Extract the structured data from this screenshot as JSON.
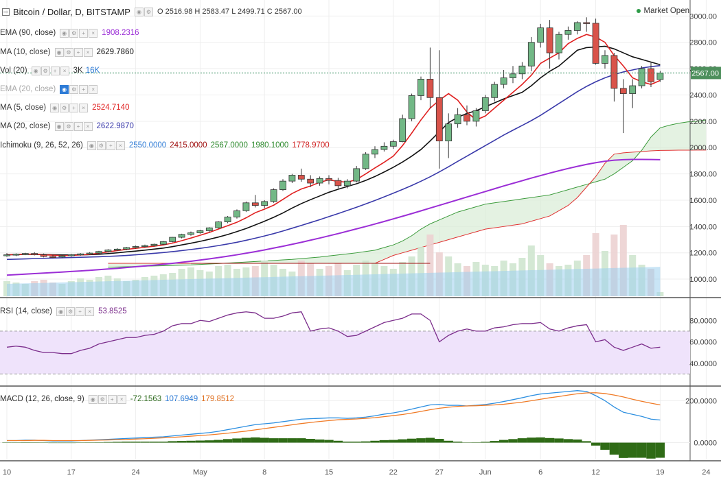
{
  "legend": {
    "main": {
      "title": "Bitcoin / Dollar, D, BITSTAMP",
      "ohlc": "O 2516.98  H 2583.47  L 2499.71  C 2567.00"
    },
    "ema90": {
      "name": "EMA (90, close)",
      "value": "1908.2316",
      "color": "#9b2ed6"
    },
    "ma10": {
      "name": "MA (10, close)",
      "value": "2629.7860",
      "color": "#111111"
    },
    "vol": {
      "name": "Vol (20)",
      "v1": "3K",
      "v2": "16K",
      "color1": "#333333",
      "color2": "#2d7bd6"
    },
    "ema20": {
      "name": "EMA (20, close)"
    },
    "ma5": {
      "name": "MA (5, close)",
      "value": "2524.7140",
      "color": "#e02020"
    },
    "ma20": {
      "name": "MA (20, close)",
      "value": "2622.9870",
      "color": "#3a3aaa"
    },
    "ichimoku": {
      "name": "Ichimoku (9, 26, 52, 26)",
      "values": [
        "2550.0000",
        "2415.0000",
        "2567.0000",
        "1980.1000",
        "1778.9700"
      ],
      "colors": [
        "#2d7bd6",
        "#a01010",
        "#2e8b2e",
        "#2e8b2e",
        "#d02020"
      ]
    },
    "rsi": {
      "name": "RSI (14, close)",
      "value": "53.8525",
      "color": "#7b2d8b"
    },
    "macd": {
      "name": "MACD (12, 26, close, 9)",
      "values": [
        "-72.1563",
        "107.6949",
        "179.8512"
      ],
      "colors": [
        "#2e6b1e",
        "#2d7bd6",
        "#e07020"
      ]
    }
  },
  "market_status": "Market Open",
  "price_tag": "2567.00",
  "chart_data": {
    "type": "candlestick",
    "title": "Bitcoin / Dollar, D, BITSTAMP",
    "y_ticks": [
      "3000.00",
      "2800.00",
      "2600.00",
      "2400.00",
      "2200.00",
      "2000.00",
      "1800.00",
      "1600.00",
      "1400.00",
      "1200.00",
      "1000.00"
    ],
    "ylim": [
      870,
      3080
    ],
    "x_ticks": [
      {
        "label": "10",
        "index": 0
      },
      {
        "label": "17",
        "index": 7
      },
      {
        "label": "24",
        "index": 14
      },
      {
        "label": "May",
        "index": 21
      },
      {
        "label": "8",
        "index": 28
      },
      {
        "label": "15",
        "index": 35
      },
      {
        "label": "22",
        "index": 42
      },
      {
        "label": "27",
        "index": 47
      },
      {
        "label": "Jun",
        "index": 52
      },
      {
        "label": "6",
        "index": 58
      },
      {
        "label": "12",
        "index": 64
      },
      {
        "label": "19",
        "index": 71
      },
      {
        "label": "24",
        "index": 76
      }
    ],
    "ohlc": [
      [
        1180,
        1198,
        1170,
        1185
      ],
      [
        1185,
        1196,
        1175,
        1190
      ],
      [
        1190,
        1200,
        1182,
        1195
      ],
      [
        1195,
        1205,
        1180,
        1185
      ],
      [
        1185,
        1195,
        1165,
        1172
      ],
      [
        1172,
        1185,
        1160,
        1168
      ],
      [
        1168,
        1182,
        1160,
        1178
      ],
      [
        1178,
        1192,
        1170,
        1186
      ],
      [
        1186,
        1198,
        1178,
        1192
      ],
      [
        1192,
        1205,
        1185,
        1198
      ],
      [
        1198,
        1215,
        1190,
        1210
      ],
      [
        1210,
        1228,
        1202,
        1222
      ],
      [
        1222,
        1235,
        1215,
        1228
      ],
      [
        1228,
        1245,
        1220,
        1240
      ],
      [
        1240,
        1255,
        1232,
        1248
      ],
      [
        1248,
        1262,
        1240,
        1255
      ],
      [
        1255,
        1270,
        1248,
        1265
      ],
      [
        1265,
        1290,
        1260,
        1285
      ],
      [
        1285,
        1320,
        1280,
        1318
      ],
      [
        1318,
        1345,
        1310,
        1340
      ],
      [
        1340,
        1362,
        1330,
        1352
      ],
      [
        1352,
        1375,
        1345,
        1368
      ],
      [
        1368,
        1395,
        1355,
        1390
      ],
      [
        1390,
        1440,
        1385,
        1435
      ],
      [
        1435,
        1480,
        1425,
        1472
      ],
      [
        1472,
        1530,
        1460,
        1520
      ],
      [
        1520,
        1590,
        1510,
        1580
      ],
      [
        1580,
        1640,
        1545,
        1560
      ],
      [
        1560,
        1600,
        1540,
        1590
      ],
      [
        1590,
        1690,
        1580,
        1680
      ],
      [
        1680,
        1760,
        1670,
        1745
      ],
      [
        1745,
        1800,
        1730,
        1790
      ],
      [
        1790,
        1840,
        1740,
        1760
      ],
      [
        1760,
        1790,
        1700,
        1730
      ],
      [
        1730,
        1780,
        1710,
        1765
      ],
      [
        1765,
        1790,
        1720,
        1750
      ],
      [
        1750,
        1770,
        1690,
        1710
      ],
      [
        1710,
        1760,
        1690,
        1745
      ],
      [
        1745,
        1860,
        1735,
        1840
      ],
      [
        1840,
        1965,
        1830,
        1950
      ],
      [
        1950,
        2010,
        1920,
        1985
      ],
      [
        1985,
        2040,
        1970,
        2010
      ],
      [
        2010,
        2060,
        1990,
        2045
      ],
      [
        2045,
        2250,
        2040,
        2220
      ],
      [
        2220,
        2410,
        2200,
        2395
      ],
      [
        2395,
        2540,
        2360,
        2520
      ],
      [
        2520,
        2760,
        2300,
        2380
      ],
      [
        2380,
        2740,
        1840,
        2050
      ],
      [
        2050,
        2260,
        1920,
        2180
      ],
      [
        2180,
        2300,
        2150,
        2250
      ],
      [
        2250,
        2320,
        2170,
        2200
      ],
      [
        2200,
        2300,
        2160,
        2280
      ],
      [
        2280,
        2400,
        2260,
        2380
      ],
      [
        2380,
        2500,
        2350,
        2480
      ],
      [
        2480,
        2590,
        2450,
        2530
      ],
      [
        2530,
        2620,
        2490,
        2560
      ],
      [
        2560,
        2650,
        2520,
        2620
      ],
      [
        2620,
        2840,
        2580,
        2800
      ],
      [
        2800,
        2940,
        2760,
        2910
      ],
      [
        2910,
        2970,
        2600,
        2720
      ],
      [
        2720,
        2880,
        2670,
        2860
      ],
      [
        2860,
        2920,
        2820,
        2890
      ],
      [
        2890,
        2960,
        2860,
        2950
      ],
      [
        2950,
        2990,
        2880,
        2945
      ],
      [
        2945,
        2980,
        2630,
        2640
      ],
      [
        2640,
        2740,
        2600,
        2700
      ],
      [
        2700,
        2720,
        2350,
        2450
      ],
      [
        2450,
        2520,
        2110,
        2410
      ],
      [
        2410,
        2520,
        2300,
        2470
      ],
      [
        2470,
        2620,
        2450,
        2600
      ],
      [
        2600,
        2650,
        2460,
        2500
      ],
      [
        2517,
        2583,
        2500,
        2567
      ]
    ],
    "ma5": [
      1185,
      1187,
      1189,
      1190,
      1185,
      1182,
      1178,
      1180,
      1184,
      1188,
      1197,
      1207,
      1217,
      1226,
      1234,
      1242,
      1250,
      1260,
      1274,
      1292,
      1312,
      1333,
      1355,
      1381,
      1406,
      1432,
      1466,
      1505,
      1532,
      1562,
      1606,
      1651,
      1685,
      1708,
      1736,
      1755,
      1742,
      1737,
      1757,
      1800,
      1845,
      1888,
      1935,
      2015,
      2110,
      2210,
      2300,
      2360,
      2410,
      2360,
      2270,
      2210,
      2240,
      2300,
      2360,
      2420,
      2480,
      2550,
      2640,
      2680,
      2720,
      2790,
      2830,
      2860,
      2840,
      2800,
      2700,
      2620,
      2530,
      2500,
      2480,
      2510
    ],
    "ma10": [
      1185,
      1187,
      1188,
      1188,
      1187,
      1185,
      1184,
      1184,
      1185,
      1186,
      1189,
      1194,
      1200,
      1207,
      1213,
      1220,
      1228,
      1236,
      1247,
      1260,
      1273,
      1287,
      1303,
      1320,
      1339,
      1361,
      1385,
      1412,
      1440,
      1470,
      1503,
      1540,
      1574,
      1604,
      1632,
      1660,
      1683,
      1704,
      1725,
      1750,
      1780,
      1814,
      1850,
      1890,
      1935,
      1985,
      2050,
      2120,
      2190,
      2230,
      2260,
      2280,
      2310,
      2340,
      2370,
      2395,
      2420,
      2470,
      2530,
      2580,
      2620,
      2680,
      2740,
      2760,
      2765,
      2770,
      2750,
      2720,
      2690,
      2670,
      2650,
      2630
    ],
    "ma20": [
      1150,
      1152,
      1154,
      1156,
      1158,
      1160,
      1162,
      1164,
      1166,
      1168,
      1170,
      1173,
      1176,
      1180,
      1185,
      1190,
      1196,
      1202,
      1209,
      1217,
      1225,
      1234,
      1244,
      1255,
      1267,
      1280,
      1295,
      1311,
      1328,
      1346,
      1366,
      1387,
      1408,
      1430,
      1452,
      1475,
      1498,
      1522,
      1546,
      1572,
      1598,
      1625,
      1653,
      1682,
      1712,
      1744,
      1778,
      1815,
      1854,
      1895,
      1935,
      1975,
      2015,
      2055,
      2095,
      2132,
      2168,
      2205,
      2245,
      2290,
      2335,
      2380,
      2425,
      2465,
      2500,
      2530,
      2555,
      2575,
      2590,
      2605,
      2615,
      2623
    ],
    "ema90": [
      1030,
      1034,
      1038,
      1042,
      1046,
      1050,
      1054,
      1058,
      1062,
      1067,
      1072,
      1077,
      1082,
      1088,
      1094,
      1100,
      1106,
      1113,
      1120,
      1128,
      1136,
      1145,
      1154,
      1164,
      1174,
      1185,
      1197,
      1209,
      1222,
      1236,
      1250,
      1265,
      1280,
      1296,
      1312,
      1329,
      1346,
      1364,
      1382,
      1400,
      1419,
      1438,
      1458,
      1478,
      1498,
      1519,
      1540,
      1561,
      1582,
      1603,
      1624,
      1645,
      1666,
      1687,
      1708,
      1728,
      1748,
      1768,
      1787,
      1806,
      1824,
      1841,
      1857,
      1872,
      1885,
      1896,
      1904,
      1908,
      1910,
      1910,
      1909,
      1908
    ],
    "ichimoku_span_a": [
      1090,
      1092,
      1094,
      1096,
      1098,
      1100,
      1102,
      1104,
      1106,
      1108,
      1112,
      1115,
      1118,
      1122,
      1126,
      1130,
      1134,
      1138,
      1142,
      1146,
      1150,
      1156,
      1162,
      1168,
      1176,
      1184,
      1192,
      1200,
      1210,
      1220,
      1240,
      1260,
      1290,
      1330,
      1380,
      1420,
      1450,
      1480,
      1510,
      1530,
      1550,
      1570,
      1580,
      1590,
      1600,
      1610,
      1620,
      1630,
      1640,
      1660,
      1680,
      1700,
      1720,
      1740,
      1760,
      1800,
      1850,
      1900,
      1980,
      2080,
      2150,
      2170,
      2185,
      2195,
      2200,
      2210
    ],
    "ichimoku_span_b": [
      1120,
      1120,
      1120,
      1120,
      1120,
      1120,
      1120,
      1120,
      1120,
      1120,
      1120,
      1120,
      1120,
      1120,
      1120,
      1120,
      1120,
      1120,
      1120,
      1120,
      1120,
      1120,
      1120,
      1120,
      1120,
      1120,
      1120,
      1120,
      1120,
      1120,
      1150,
      1180,
      1200,
      1220,
      1240,
      1260,
      1280,
      1300,
      1320,
      1340,
      1360,
      1380,
      1390,
      1400,
      1410,
      1420,
      1440,
      1460,
      1480,
      1520,
      1560,
      1620,
      1700,
      1780,
      1880,
      1950,
      1960,
      1965,
      1970,
      1975,
      1978,
      1979,
      1980,
      1980,
      1981,
      1981
    ],
    "volume": [
      1,
      1,
      1,
      1,
      1,
      1,
      1,
      1,
      1,
      1,
      1,
      1,
      1,
      1,
      1,
      1,
      1,
      1,
      1,
      1,
      1,
      1,
      1,
      1,
      1,
      1,
      1,
      1,
      1,
      1,
      1,
      1,
      1,
      1,
      1,
      1,
      1,
      1,
      1,
      1,
      1,
      1,
      1,
      1,
      1,
      1,
      1,
      1,
      1,
      1,
      1,
      1,
      1,
      1,
      1,
      1,
      1,
      1,
      1,
      1,
      1,
      1,
      1,
      1,
      1,
      1,
      1,
      1,
      1,
      1,
      1,
      1
    ],
    "rsi": {
      "ylim": [
        20,
        100
      ],
      "ticks": [
        "80.0000",
        "60.0000",
        "40.0000"
      ],
      "band": [
        30,
        70
      ],
      "values": [
        55,
        56,
        55,
        52,
        50,
        50,
        49,
        49,
        52,
        54,
        58,
        60,
        62,
        64,
        64,
        66,
        67,
        70,
        75,
        77,
        77,
        80,
        79,
        82,
        85,
        87,
        88,
        87,
        82,
        82,
        84,
        87,
        88,
        70,
        72,
        73,
        70,
        65,
        66,
        70,
        74,
        78,
        80,
        82,
        86,
        86,
        80,
        60,
        66,
        70,
        72,
        70,
        70,
        73,
        74,
        76,
        77,
        77,
        78,
        72,
        70,
        73,
        75,
        76,
        60,
        62,
        55,
        52,
        55,
        58,
        54,
        55
      ]
    },
    "macd": {
      "ylim": [
        -80,
        260
      ],
      "ticks": [
        "200.0000",
        "0.0000"
      ],
      "macd": [
        10,
        10,
        12,
        12,
        10,
        8,
        8,
        8,
        10,
        12,
        14,
        16,
        18,
        20,
        22,
        24,
        26,
        28,
        32,
        36,
        40,
        44,
        48,
        54,
        62,
        70,
        78,
        86,
        90,
        94,
        100,
        106,
        112,
        114,
        116,
        118,
        118,
        116,
        118,
        122,
        128,
        136,
        142,
        150,
        160,
        170,
        180,
        182,
        178,
        178,
        175,
        178,
        182,
        188,
        196,
        205,
        214,
        224,
        232,
        236,
        240,
        244,
        248,
        244,
        224,
        200,
        170,
        145,
        135,
        125,
        112,
        108
      ],
      "signal": [
        10,
        10,
        10,
        11,
        11,
        10,
        10,
        10,
        10,
        11,
        12,
        13,
        14,
        15,
        17,
        19,
        21,
        23,
        25,
        28,
        31,
        34,
        37,
        41,
        45,
        50,
        55,
        61,
        67,
        73,
        79,
        85,
        91,
        96,
        101,
        105,
        109,
        111,
        113,
        116,
        119,
        124,
        129,
        134,
        141,
        149,
        157,
        164,
        169,
        173,
        175,
        176,
        178,
        180,
        183,
        188,
        193,
        200,
        207,
        214,
        220,
        227,
        233,
        237,
        238,
        234,
        227,
        218,
        207,
        197,
        188,
        180
      ],
      "hist": [
        0,
        0,
        2,
        1,
        -1,
        -2,
        -2,
        -2,
        0,
        1,
        2,
        3,
        4,
        5,
        5,
        5,
        5,
        5,
        7,
        8,
        9,
        10,
        11,
        13,
        17,
        20,
        23,
        25,
        23,
        21,
        21,
        21,
        21,
        18,
        15,
        13,
        9,
        5,
        5,
        6,
        9,
        12,
        13,
        16,
        19,
        21,
        23,
        18,
        9,
        5,
        0,
        2,
        4,
        8,
        13,
        17,
        21,
        24,
        25,
        22,
        20,
        17,
        15,
        7,
        -14,
        -34,
        -57,
        -73,
        -72,
        -72,
        -76,
        -72
      ]
    }
  }
}
